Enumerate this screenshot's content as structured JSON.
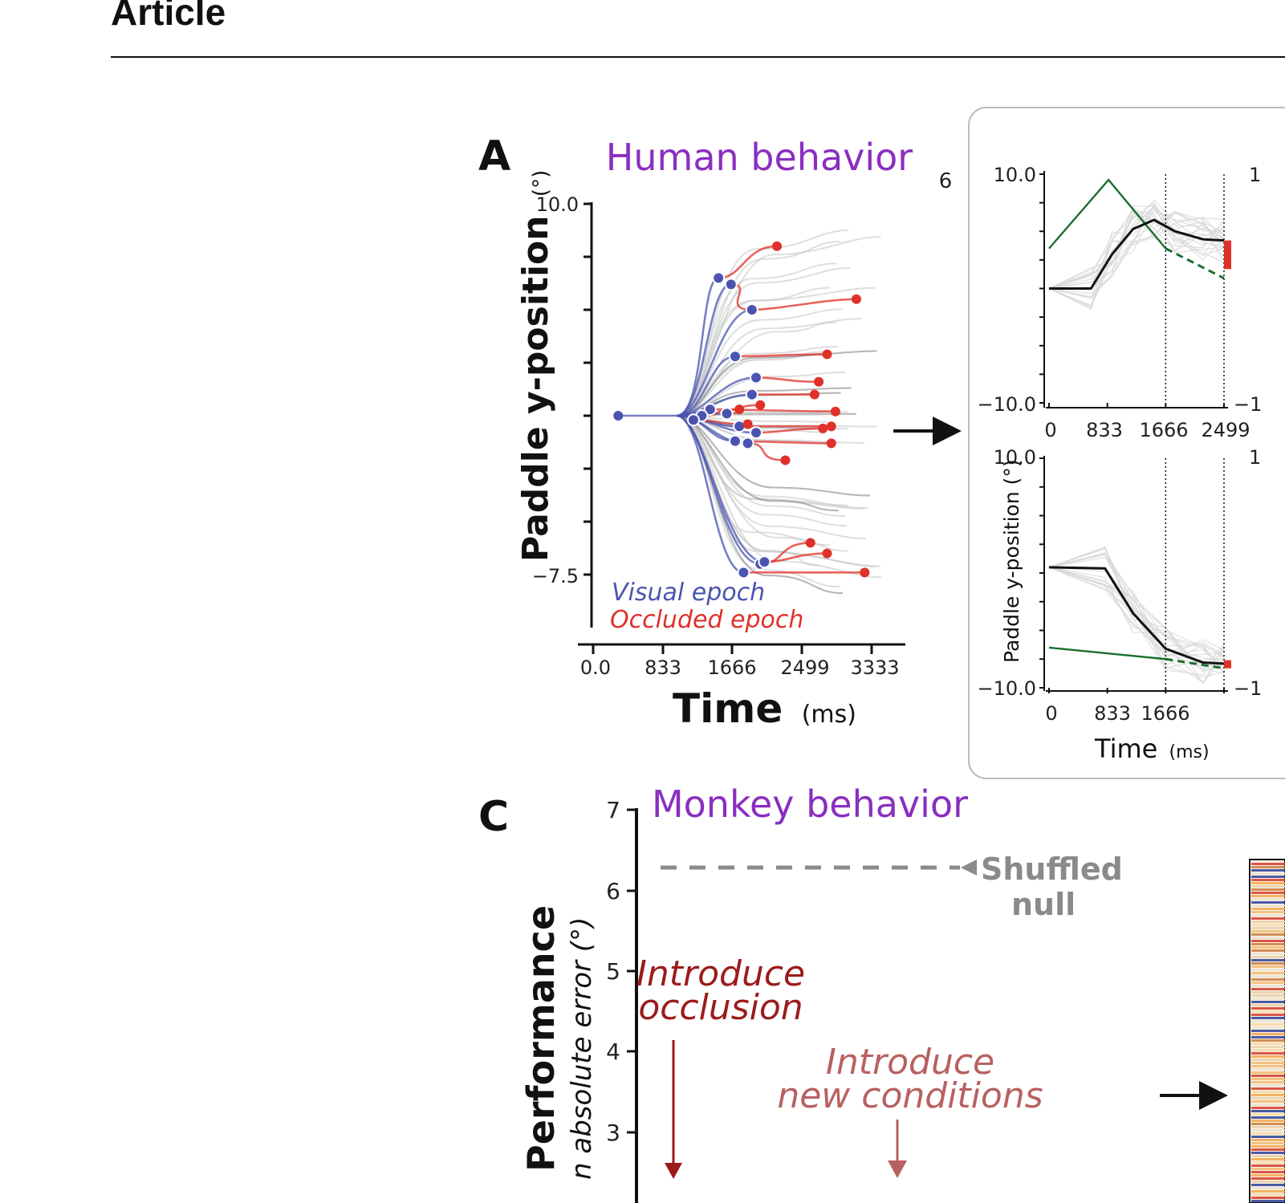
{
  "header": {
    "title": "Article"
  },
  "panel_a": {
    "letter": "A",
    "title": "Human behavior",
    "ylabel_main": "Paddle y-position",
    "ylabel_unit": "(°)",
    "yticks": [
      "10.0",
      "−7.5"
    ],
    "xticks": [
      "0.0",
      "833",
      "1666",
      "2499",
      "3333"
    ],
    "xlabel_main": "Time",
    "xlabel_unit": "(ms)",
    "legend": [
      "Visual epoch",
      "Occluded epoch"
    ]
  },
  "panel_b": {
    "top": {
      "label": "6",
      "yticks": [
        "10.0",
        "−10.0"
      ],
      "xticks": [
        "0",
        "833",
        "1666",
        "2499"
      ],
      "right_ticks": [
        "1",
        "−1"
      ]
    },
    "bottom": {
      "yticks": [
        "10.0",
        "−10.0"
      ],
      "xticks": [
        "0",
        "833",
        "1666"
      ],
      "ylabel": "Paddle y-position (°)",
      "xlabel_main": "Time",
      "xlabel_unit": "(ms)",
      "right_ticks": [
        "1",
        "−1"
      ]
    }
  },
  "panel_c": {
    "letter": "C",
    "title": "Monkey behavior",
    "yticks": [
      "7",
      "6",
      "5",
      "4",
      "3"
    ],
    "ylabel_main": "Performance",
    "ylabel_sub": "n absolute error (°)",
    "null_label_1": "Shuffled",
    "null_label_2": "null",
    "annot1_l1": "Introduce",
    "annot1_l2": "occlusion",
    "annot2_l1": "Introduce",
    "annot2_l2": "new conditions"
  },
  "colors": {
    "purple": "#8a2ec0",
    "visual": "#4a54b0",
    "occluded": "#e0302a",
    "dark_red": "#9b1b1b",
    "light_red": "#b86060",
    "green": "#1b6e2e",
    "null_gray": "#8a8a8a"
  },
  "chart_data": [
    {
      "type": "line",
      "panel": "A",
      "title": "Human behavior",
      "xlabel": "Time (ms)",
      "ylabel": "Paddle y-position (°)",
      "xlim": [
        0,
        3500
      ],
      "ylim": [
        -10,
        10
      ],
      "start_time": 1000,
      "visual_trajectories": [
        {
          "end_t": 1500,
          "end_y": 6.5,
          "occ_t": 2200,
          "occ_y": 8.0
        },
        {
          "end_t": 1650,
          "end_y": 6.2,
          "occ_t": 1900,
          "occ_y": 5.0
        },
        {
          "end_t": 1900,
          "end_y": 5.0,
          "occ_t": 3150,
          "occ_y": 5.5
        },
        {
          "end_t": 1700,
          "end_y": 2.8,
          "occ_t": 2800,
          "occ_y": 2.9
        },
        {
          "end_t": 1950,
          "end_y": 1.8,
          "occ_t": 2700,
          "occ_y": 1.6
        },
        {
          "end_t": 1900,
          "end_y": 1.0,
          "occ_t": 2650,
          "occ_y": 1.0
        },
        {
          "end_t": 1400,
          "end_y": 0.3,
          "occ_t": 2900,
          "occ_y": 0.2
        },
        {
          "end_t": 1600,
          "end_y": 0.1,
          "occ_t": 2000,
          "occ_y": 0.5
        },
        {
          "end_t": 1300,
          "end_y": 0.0,
          "occ_t": 1750,
          "occ_y": 0.3
        },
        {
          "end_t": 1750,
          "end_y": -0.5,
          "occ_t": 2850,
          "occ_y": -0.5
        },
        {
          "end_t": 1950,
          "end_y": -0.8,
          "occ_t": 2750,
          "occ_y": -0.6
        },
        {
          "end_t": 1700,
          "end_y": -1.2,
          "occ_t": 2850,
          "occ_y": -1.3
        },
        {
          "end_t": 1850,
          "end_y": -1.3,
          "occ_t": 2300,
          "occ_y": -2.1
        },
        {
          "end_t": 1200,
          "end_y": -0.2,
          "occ_t": 1850,
          "occ_y": -0.4
        },
        {
          "end_t": 2000,
          "end_y": -7.0,
          "occ_t": 2600,
          "occ_y": -6.0
        },
        {
          "end_t": 1800,
          "end_y": -7.4,
          "occ_t": 3250,
          "occ_y": -7.4
        },
        {
          "end_t": 2050,
          "end_y": -6.9,
          "occ_t": 2800,
          "occ_y": -6.5
        }
      ]
    },
    {
      "type": "line",
      "panel": "B-top",
      "xlim": [
        0,
        2499
      ],
      "ylim": [
        -10,
        10
      ],
      "mean_path": [
        [
          0,
          0
        ],
        [
          600,
          0
        ],
        [
          900,
          3
        ],
        [
          1200,
          5.2
        ],
        [
          1500,
          6
        ],
        [
          1800,
          5
        ],
        [
          2200,
          4.3
        ],
        [
          2499,
          4.2
        ]
      ],
      "target_path": [
        [
          0,
          3.5
        ],
        [
          850,
          9.5
        ],
        [
          1666,
          3.5
        ],
        [
          2499,
          0.9
        ]
      ],
      "occlusion_t": 1666,
      "end_marker": [
        1.7,
        4.2
      ]
    },
    {
      "type": "line",
      "panel": "B-bottom",
      "xlim": [
        0,
        2499
      ],
      "ylim": [
        -10,
        10
      ],
      "mean_path": [
        [
          0,
          0.5
        ],
        [
          800,
          0.4
        ],
        [
          1200,
          -3.5
        ],
        [
          1666,
          -6.6
        ],
        [
          2200,
          -7.8
        ],
        [
          2499,
          -7.9
        ]
      ],
      "target_path": [
        [
          0,
          -6.5
        ],
        [
          1666,
          -7.5
        ],
        [
          2499,
          -8.3
        ]
      ],
      "occlusion_t": 1666,
      "end_marker": [
        -7.6,
        -8.3
      ]
    },
    {
      "type": "line",
      "panel": "C",
      "title": "Monkey behavior",
      "ylabel": "Performance (mean absolute error °)",
      "ylim": [
        2.5,
        7
      ],
      "null_value": 6.3
    }
  ]
}
